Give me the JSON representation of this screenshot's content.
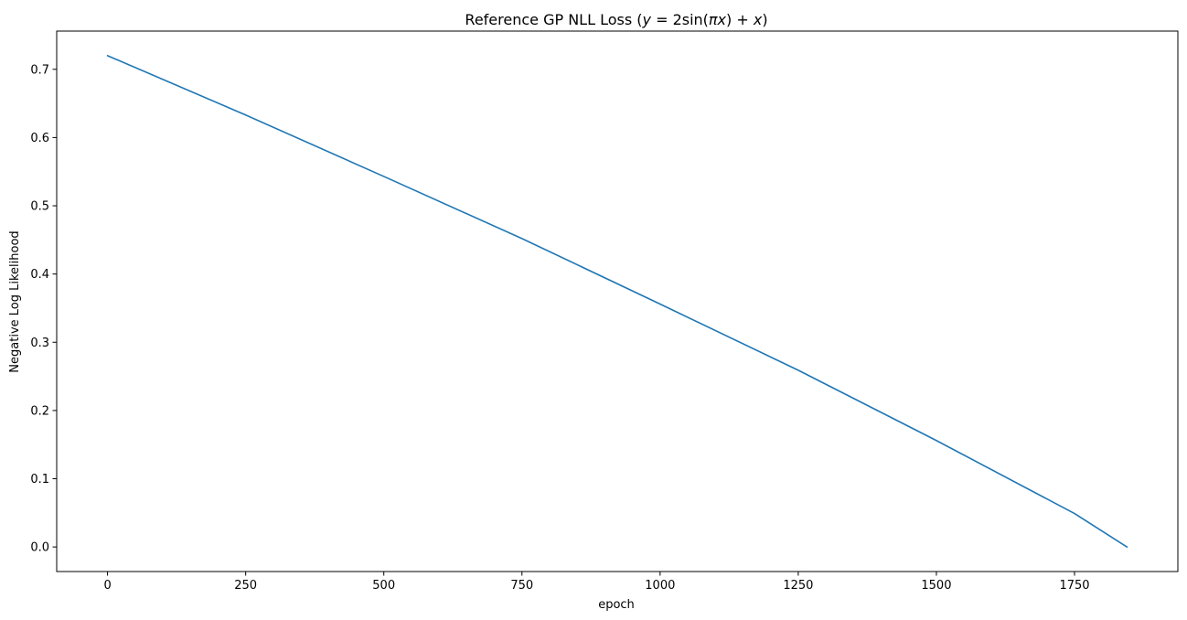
{
  "chart_data": {
    "type": "line",
    "title": "Reference GP NLL Loss (y = 2sin(πx) + x)",
    "title_parts": {
      "prefix": "Reference GP NLL Loss (",
      "y": "y",
      "eq": " = 2sin(",
      "pi": "π",
      "x1": "x",
      "mid": ") + ",
      "x2": "x",
      "suffix": ")"
    },
    "xlabel": "epoch",
    "ylabel": "Negative Log Likelihood",
    "xlim": [
      -92,
      1937
    ],
    "ylim": [
      -0.036,
      0.756
    ],
    "xticks": [
      0,
      250,
      500,
      750,
      1000,
      1250,
      1500,
      1750
    ],
    "xtick_labels": [
      "0",
      "250",
      "500",
      "750",
      "1000",
      "1250",
      "1500",
      "1750"
    ],
    "yticks": [
      0.0,
      0.1,
      0.2,
      0.3,
      0.4,
      0.5,
      0.6,
      0.7
    ],
    "ytick_labels": [
      "0.0",
      "0.1",
      "0.2",
      "0.3",
      "0.4",
      "0.5",
      "0.6",
      "0.7"
    ],
    "grid": false,
    "series": [
      {
        "color": "#1f77b4",
        "x": [
          0,
          250,
          500,
          750,
          1000,
          1250,
          1500,
          1750,
          1845
        ],
        "y": [
          0.72,
          0.633,
          0.543,
          0.452,
          0.356,
          0.259,
          0.156,
          0.049,
          0.0
        ]
      }
    ]
  }
}
